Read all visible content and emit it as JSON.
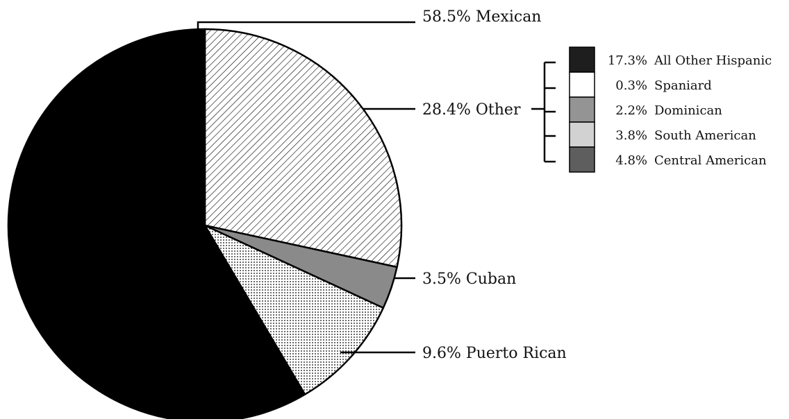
{
  "chart_data": {
    "type": "pie",
    "title": "",
    "slices": [
      {
        "label": "Mexican",
        "value": 58.5,
        "text": "58.5% Mexican",
        "fill": "#000000",
        "pattern": "solid"
      },
      {
        "label": "Other",
        "value": 28.4,
        "text": "28.4% Other",
        "fill": "#ffffff",
        "pattern": "diagonal-hatch"
      },
      {
        "label": "Cuban",
        "value": 3.5,
        "text": "3.5% Cuban",
        "fill": "#8a8a8a",
        "pattern": "solid"
      },
      {
        "label": "Puerto Rican",
        "value": 9.6,
        "text": "9.6% Puerto Rican",
        "fill": "#ffffff",
        "pattern": "dots"
      }
    ],
    "other_breakdown": [
      {
        "label": "All Other Hispanic",
        "value": 17.3,
        "value_text": "17.3%",
        "fill": "#1e1e1e"
      },
      {
        "label": "Spaniard",
        "value": 0.3,
        "value_text": "0.3%",
        "fill": "#ffffff"
      },
      {
        "label": "Dominican",
        "value": 2.2,
        "value_text": "2.2%",
        "fill": "#949494"
      },
      {
        "label": "South American",
        "value": 3.8,
        "value_text": "3.8%",
        "fill": "#d2d2d2"
      },
      {
        "label": "Central American",
        "value": 4.8,
        "value_text": "4.8%",
        "fill": "#5e5e5e"
      }
    ]
  }
}
